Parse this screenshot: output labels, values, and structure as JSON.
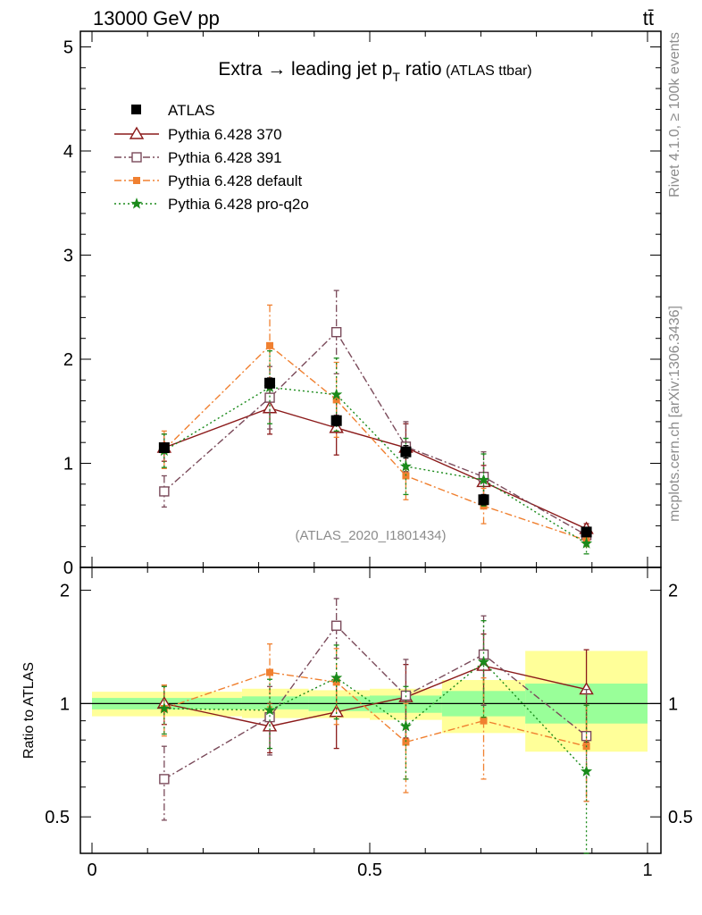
{
  "header": {
    "energy_label": "13000 GeV pp",
    "process_label": "tt̄"
  },
  "side_texts": {
    "rivet": "Rivet 4.1.0, ≥ 100k events",
    "mcplots": "mcplots.cern.ch [arXiv:1306.3436]"
  },
  "chart_data": {
    "type": "line",
    "title": "Extra → leading jet p",
    "title_sub": "T",
    "title_suffix": " ratio",
    "title_small": " (ATLAS ttbar)",
    "analysis_label": "(ATLAS_2020_I1801434)",
    "ratio_ylabel": "Ratio to ATLAS",
    "xlim": [
      0,
      1
    ],
    "ylim_main": [
      0,
      5.15
    ],
    "ylim_ratio": [
      0.4,
      2.3
    ],
    "x_ticks": [
      {
        "value": 0,
        "label": "0"
      },
      {
        "value": 0.5,
        "label": "0.5"
      },
      {
        "value": 1,
        "label": "1"
      }
    ],
    "main_y_ticks": [
      {
        "value": 0,
        "label": "0"
      },
      {
        "value": 1,
        "label": "1"
      },
      {
        "value": 2,
        "label": "2"
      },
      {
        "value": 3,
        "label": "3"
      },
      {
        "value": 4,
        "label": "4"
      },
      {
        "value": 5,
        "label": "5"
      }
    ],
    "ratio_y_ticks": [
      {
        "value": 0.5,
        "label": "0.5"
      },
      {
        "value": 1,
        "label": "1"
      },
      {
        "value": 2,
        "label": "2"
      }
    ],
    "data": {
      "name": "ATLAS",
      "x": [
        0.13,
        0.32,
        0.44,
        0.565,
        0.705,
        0.89
      ],
      "y": [
        1.15,
        1.77,
        1.41,
        1.11,
        0.65,
        0.34
      ],
      "bands": [
        {
          "x0": 0.0,
          "x1": 0.27,
          "inner": [
            0.965,
            1.035
          ],
          "outer": [
            0.925,
            1.075
          ]
        },
        {
          "x0": 0.27,
          "x1": 0.39,
          "inner": [
            0.965,
            1.045
          ],
          "outer": [
            0.915,
            1.095
          ]
        },
        {
          "x0": 0.39,
          "x1": 0.5,
          "inner": [
            0.955,
            1.045
          ],
          "outer": [
            0.915,
            1.085
          ]
        },
        {
          "x0": 0.5,
          "x1": 0.63,
          "inner": [
            0.945,
            1.05
          ],
          "outer": [
            0.905,
            1.095
          ]
        },
        {
          "x0": 0.63,
          "x1": 0.78,
          "inner": [
            0.925,
            1.08
          ],
          "outer": [
            0.835,
            1.155
          ]
        },
        {
          "x0": 0.78,
          "x1": 1.0,
          "inner": [
            0.885,
            1.13
          ],
          "outer": [
            0.745,
            1.38
          ]
        }
      ]
    },
    "series": [
      {
        "name": "Pythia 6.428 370",
        "color": "#8b1a1a",
        "marker": "triangle",
        "dash": "",
        "y": [
          1.15,
          1.53,
          1.34,
          1.15,
          0.82,
          0.37
        ],
        "yerr": [
          0.13,
          0.25,
          0.26,
          0.23,
          0.16,
          0.05
        ],
        "ratio": [
          1.0,
          0.87,
          0.95,
          1.04,
          1.26,
          1.09
        ],
        "ratio_err": [
          0.12,
          0.13,
          0.19,
          0.23,
          0.27,
          0.3
        ]
      },
      {
        "name": "Pythia 6.428 391",
        "color": "#7a4a5a",
        "marker": "square_open",
        "dash": "8,3,2,3",
        "y": [
          0.73,
          1.63,
          2.26,
          1.16,
          0.87,
          0.31
        ],
        "yerr": [
          0.15,
          0.3,
          0.4,
          0.24,
          0.24,
          0.06
        ],
        "ratio": [
          0.63,
          0.92,
          1.61,
          1.05,
          1.35,
          0.82
        ],
        "ratio_err": [
          0.14,
          0.19,
          0.29,
          0.26,
          0.36,
          0.27
        ]
      },
      {
        "name": "Pythia 6.428 default",
        "color": "#f08030",
        "marker": "square_filled",
        "dash": "8,3,2,3",
        "y": [
          1.13,
          2.13,
          1.61,
          0.88,
          0.59,
          0.26
        ],
        "yerr": [
          0.18,
          0.39,
          0.36,
          0.23,
          0.17,
          0.06
        ],
        "ratio": [
          0.97,
          1.21,
          1.14,
          0.79,
          0.9,
          0.77
        ],
        "ratio_err": [
          0.15,
          0.23,
          0.26,
          0.21,
          0.27,
          0.22
        ]
      },
      {
        "name": "Pythia 6.428 pro-q2o",
        "color": "#1a8a1a",
        "marker": "star",
        "dash": "2,3",
        "y": [
          1.12,
          1.73,
          1.66,
          0.97,
          0.84,
          0.23
        ],
        "yerr": [
          0.16,
          0.35,
          0.35,
          0.27,
          0.25,
          0.1
        ],
        "ratio": [
          0.97,
          0.96,
          1.17,
          0.87,
          1.29,
          0.66
        ],
        "ratio_err": [
          0.14,
          0.2,
          0.26,
          0.24,
          0.37,
          0.33
        ]
      }
    ],
    "data_err_main": [
      0.04,
      0.05,
      0.05,
      0.06,
      0.05,
      0.03
    ]
  }
}
